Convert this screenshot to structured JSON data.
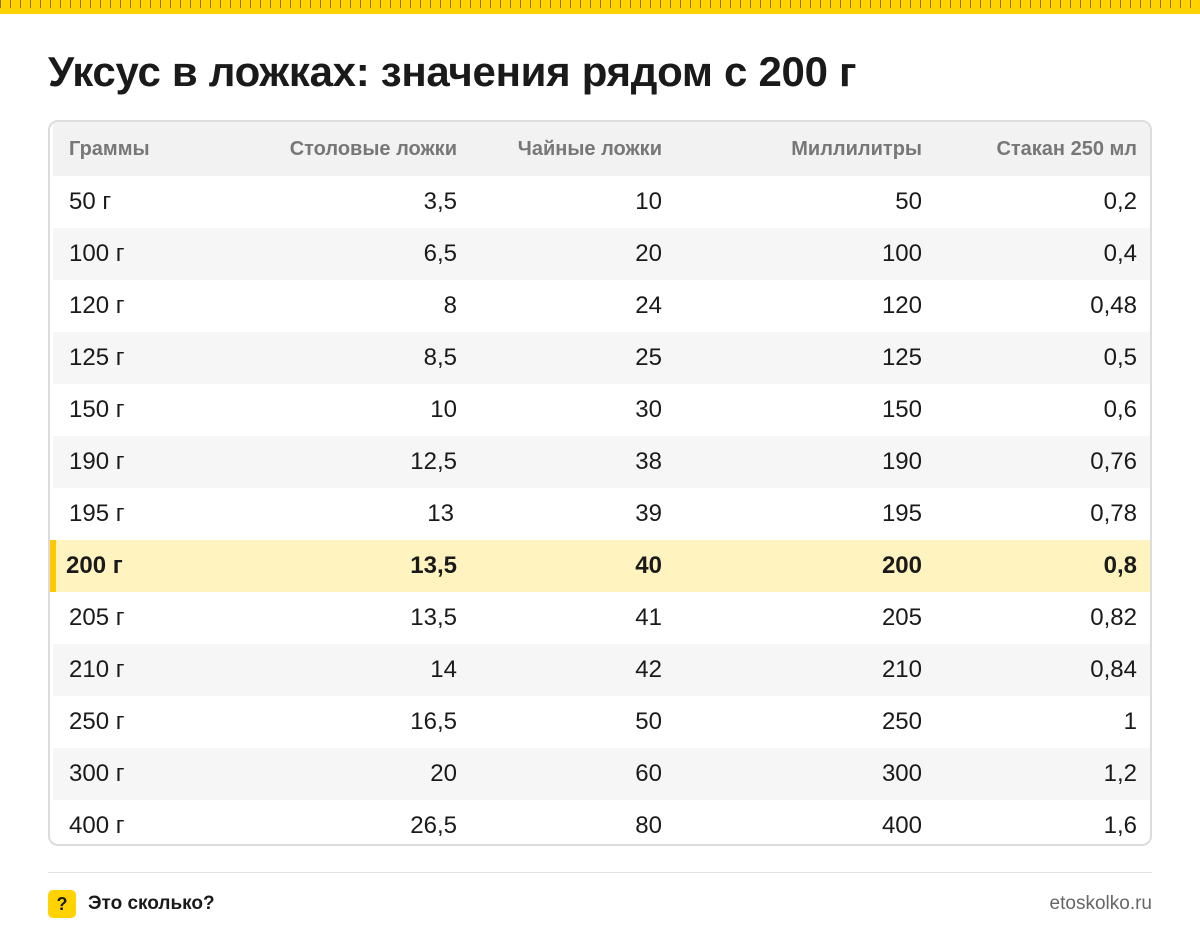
{
  "title": "Уксус в ложках: значения рядом с 200 г",
  "table": {
    "headers": [
      "Граммы",
      "Столовые ложки",
      "Чайные ложки",
      "Миллилитры",
      "Стакан 250 мл"
    ],
    "highlight_row": 7,
    "rows": [
      [
        "50 г",
        "3,5",
        "10",
        "50",
        "0,2"
      ],
      [
        "100 г",
        "6,5",
        "20",
        "100",
        "0,4"
      ],
      [
        "120 г",
        "8",
        "24",
        "120",
        "0,48"
      ],
      [
        "125 г",
        "8,5",
        "25",
        "125",
        "0,5"
      ],
      [
        "150 г",
        "10",
        "30",
        "150",
        "0,6"
      ],
      [
        "190 г",
        "12,5",
        "38",
        "190",
        "0,76"
      ],
      [
        "195 г",
        "13",
        "39",
        "195",
        "0,78"
      ],
      [
        "200 г",
        "13,5",
        "40",
        "200",
        "0,8"
      ],
      [
        "205 г",
        "13,5",
        "41",
        "205",
        "0,82"
      ],
      [
        "210 г",
        "14",
        "42",
        "210",
        "0,84"
      ],
      [
        "250 г",
        "16,5",
        "50",
        "250",
        "1"
      ],
      [
        "300 г",
        "20",
        "60",
        "300",
        "1,2"
      ],
      [
        "400 г",
        "26,5",
        "80",
        "400",
        "1,6"
      ]
    ]
  },
  "footer": {
    "badge": "?",
    "brand": "Это сколько?",
    "site": "etoskolko.ru"
  },
  "colors": {
    "accent": "#ffd200",
    "highlight_bg": "#fff3bf",
    "highlight_bar": "#ffc800"
  }
}
